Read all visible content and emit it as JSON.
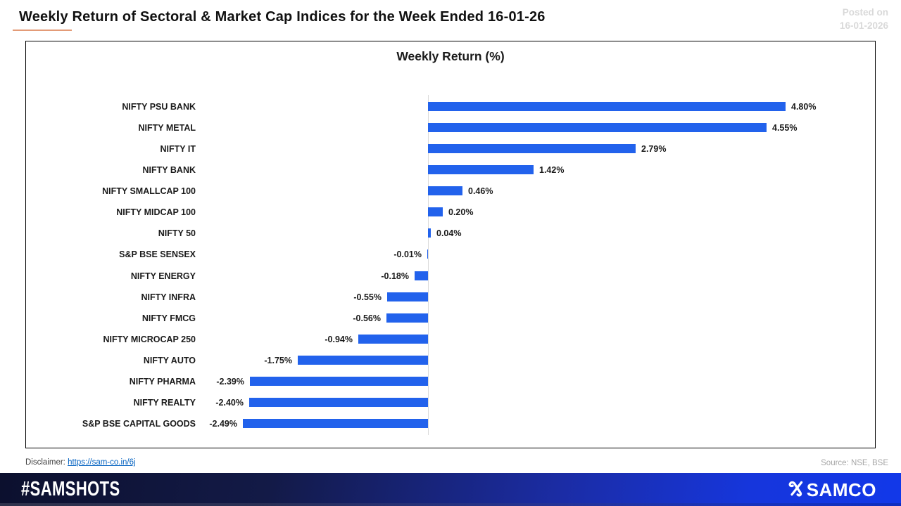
{
  "header": {
    "title": "Weekly Return of Sectoral & Market Cap Indices for the Week Ended 16-01-26",
    "posted_on_line1": "Posted on",
    "posted_on_line2": "16-01-2026"
  },
  "chart_data": {
    "type": "bar",
    "orientation": "horizontal",
    "title": "Weekly Return (%)",
    "categories": [
      "NIFTY PSU BANK",
      "NIFTY METAL",
      "NIFTY IT",
      "NIFTY BANK",
      "NIFTY SMALLCAP 100",
      "NIFTY MIDCAP 100",
      "NIFTY 50",
      "S&P BSE SENSEX",
      "NIFTY ENERGY",
      "NIFTY INFRA",
      "NIFTY FMCG",
      "NIFTY MICROCAP 250",
      "NIFTY AUTO",
      "NIFTY PHARMA",
      "NIFTY REALTY",
      "S&P BSE CAPITAL GOODS"
    ],
    "values": [
      4.8,
      4.55,
      2.79,
      1.42,
      0.46,
      0.2,
      0.04,
      -0.01,
      -0.18,
      -0.55,
      -0.56,
      -0.94,
      -1.75,
      -2.39,
      -2.4,
      -2.49
    ],
    "value_labels": [
      "4.80%",
      "4.55%",
      "2.79%",
      "1.42%",
      "0.46%",
      "0.20%",
      "0.04%",
      "-0.01%",
      "-0.18%",
      "-0.55%",
      "-0.56%",
      "-0.94%",
      "-1.75%",
      "-2.39%",
      "-2.40%",
      "-2.49%"
    ],
    "xlim": [
      -2.49,
      4.8
    ],
    "grid": false,
    "zero_baseline": true,
    "bar_color": "#2262EC",
    "value_label_position": "bar-end"
  },
  "footer": {
    "disclaimer_label": "Disclaimer: ",
    "disclaimer_link": "https://sam-co.in/6j",
    "source": "Source: NSE, BSE",
    "hashtag": "#SAMSHOTS",
    "brand": "SAMCO"
  },
  "colors": {
    "bar_blue": "#2262EC",
    "footer_navy": "#0C102E",
    "footer_blue": "#1238E9",
    "title_underline": "#E39B77",
    "posted_on_gray": "#d9d9d9",
    "source_gray": "#a6a6a6",
    "link_blue": "#0563C1"
  }
}
